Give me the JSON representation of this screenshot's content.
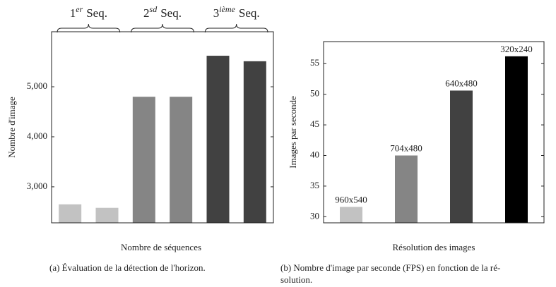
{
  "chart_data": [
    {
      "type": "bar",
      "caption": "(a) Évaluation de la détection de l'horizon.",
      "xlabel": "Nombre de séquences",
      "ylabel": "Nombre d'image",
      "categories": [
        null,
        null,
        null,
        null,
        null,
        null
      ],
      "values": [
        2650,
        2580,
        4800,
        4800,
        5620,
        5510
      ],
      "colors": [
        "#c2c2c2",
        "#c2c2c2",
        "#858585",
        "#858585",
        "#414141",
        "#414141"
      ],
      "groups": [
        {
          "base": "1",
          "sup": "er",
          "text": "Seq."
        },
        {
          "base": "2",
          "sup": "sd",
          "text": "Seq."
        },
        {
          "base": "3",
          "sup": "ième",
          "text": "Seq."
        }
      ],
      "ylim": [
        2280,
        6100
      ],
      "yticks": [
        {
          "value": 3000,
          "label": "3,000"
        },
        {
          "value": 4000,
          "label": "4,000"
        },
        {
          "value": 5000,
          "label": "5,000"
        }
      ]
    },
    {
      "type": "bar",
      "caption": [
        "(b) Nombre d'image par seconde (FPS) en fonction de la ré-",
        "solution."
      ],
      "xlabel": "Résolution des images",
      "ylabel": "Images par seconde",
      "categories": [
        "960x540",
        "704x480",
        "640x480",
        "320x240"
      ],
      "values": [
        31.6,
        40.0,
        50.6,
        56.2
      ],
      "colors": [
        "#c2c2c2",
        "#858585",
        "#414141",
        "#000000"
      ],
      "ylim": [
        29,
        58.6
      ],
      "yticks": [
        30,
        35,
        40,
        45,
        50,
        55
      ]
    }
  ]
}
